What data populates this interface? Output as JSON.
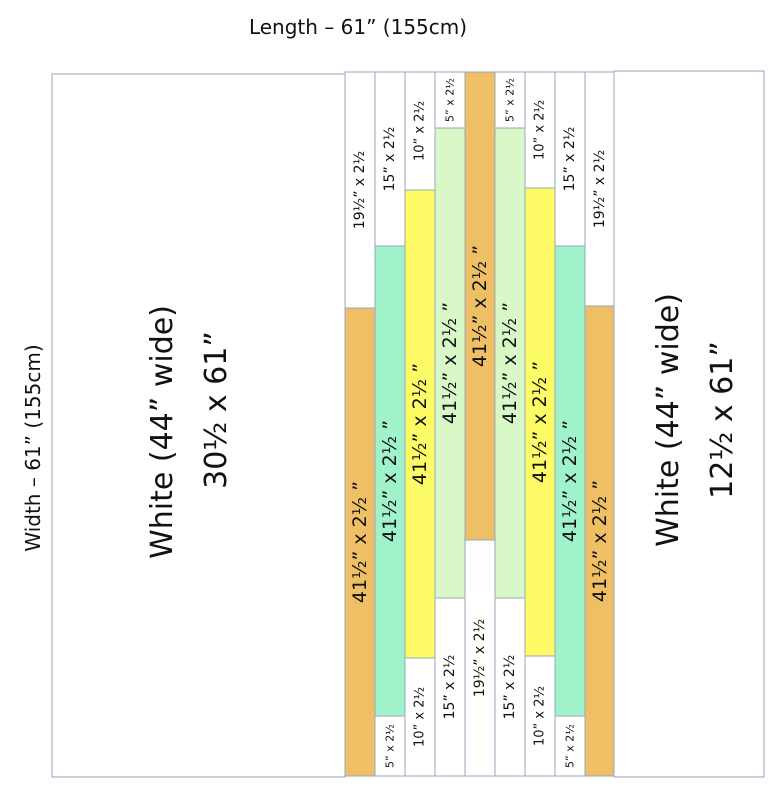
{
  "colors": {
    "white": "#ffffff",
    "orange": "#efbf66",
    "mint": "#9ff2c9",
    "yellow": "#fdfc67",
    "pale_green": "#d8f8c8",
    "outline": "#9aa6bd"
  },
  "labels": {
    "length": "Length – 61” (155cm)",
    "width": "Width – 61” (155cm)"
  },
  "panels": {
    "left": {
      "line1": "White (44” wide)",
      "line2": "30½ x 61”"
    },
    "right": {
      "line1": "White (44” wide)",
      "line2": "12½ x 61”"
    }
  },
  "strips": [
    {
      "top": {
        "label": "19½” x 2½",
        "color": "white"
      },
      "bottom": {
        "label": "41½” x 2½ ”",
        "color": "orange"
      }
    },
    {
      "top": {
        "label": "15” x 2½",
        "color": "white"
      },
      "middle": {
        "label": "41½” x 2½ ”",
        "color": "mint"
      },
      "bottom": {
        "label": "5” x 2½",
        "color": "white"
      }
    },
    {
      "top": {
        "label": "10” x 2½",
        "color": "white"
      },
      "middle": {
        "label": "41½” x 2½ ”",
        "color": "yellow"
      },
      "bottom": {
        "label": "10” x 2½",
        "color": "white"
      }
    },
    {
      "top": {
        "label": "5” x 2½",
        "color": "white"
      },
      "middle": {
        "label": "41½” x 2½ ”",
        "color": "pale_green"
      },
      "bottom": {
        "label": "15” x 2½",
        "color": "white"
      }
    },
    {
      "top": {
        "label": "41½” x 2½ ”",
        "color": "orange"
      },
      "bottom": {
        "label": "19½” x 2½",
        "color": "white"
      }
    },
    {
      "top": {
        "label": "5” x 2½",
        "color": "white"
      },
      "middle": {
        "label": "41½” x 2½ ”",
        "color": "pale_green"
      },
      "bottom": {
        "label": "15” x 2½",
        "color": "white"
      }
    },
    {
      "top": {
        "label": "10” x 2½",
        "color": "white"
      },
      "middle": {
        "label": "41½” x 2½ ”",
        "color": "yellow"
      },
      "bottom": {
        "label": "10” x 2½",
        "color": "white"
      }
    },
    {
      "top": {
        "label": "15” x 2½",
        "color": "white"
      },
      "middle": {
        "label": "41½” x 2½ ”",
        "color": "mint"
      },
      "bottom": {
        "label": "5” x 2½",
        "color": "white"
      }
    },
    {
      "top": {
        "label": "19½” x 2½",
        "color": "white"
      },
      "bottom": {
        "label": "41½” x 2½ ”",
        "color": "orange"
      }
    }
  ]
}
